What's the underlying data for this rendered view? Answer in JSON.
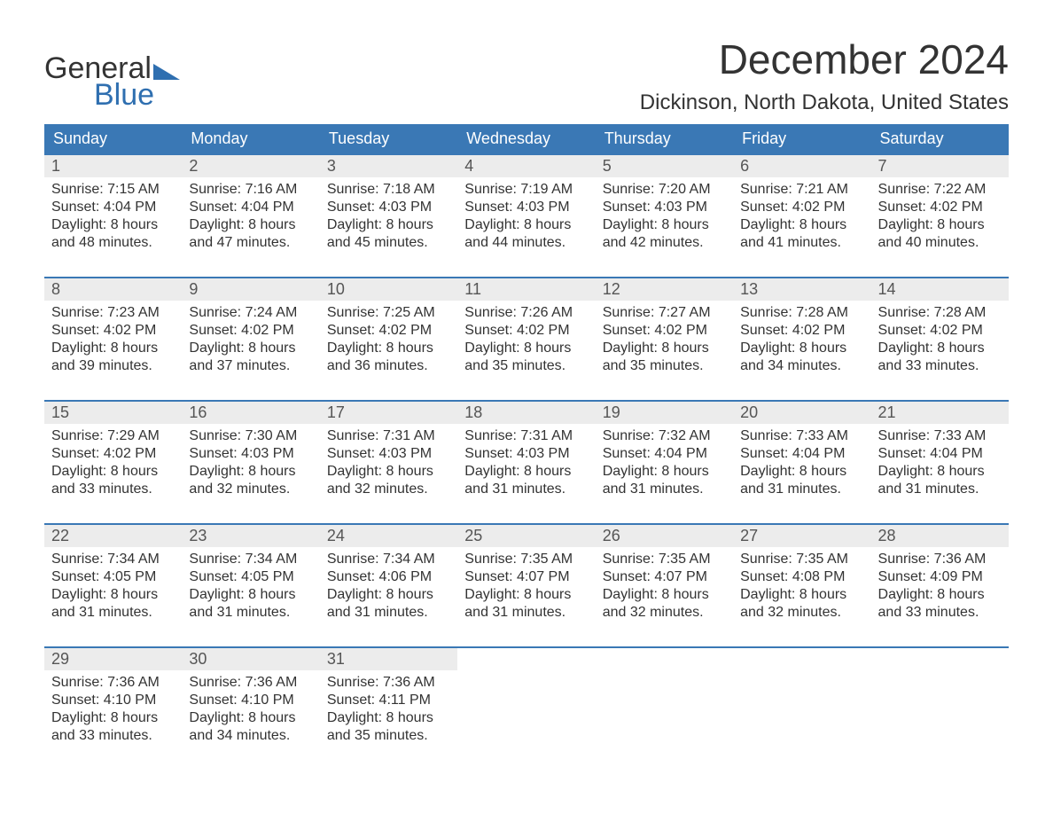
{
  "brand": {
    "line1": "General",
    "line2": "Blue"
  },
  "title": "December 2024",
  "location": "Dickinson, North Dakota, United States",
  "colors": {
    "header_bg": "#3a78b5",
    "header_fg": "#ffffff",
    "daynum_bg": "#ececec",
    "rule": "#3a78b5",
    "brand_accent": "#2f6fb0"
  },
  "weekdays": [
    "Sunday",
    "Monday",
    "Tuesday",
    "Wednesday",
    "Thursday",
    "Friday",
    "Saturday"
  ],
  "weeks": [
    [
      {
        "day": "1",
        "sunrise": "Sunrise: 7:15 AM",
        "sunset": "Sunset: 4:04 PM",
        "d1": "Daylight: 8 hours",
        "d2": "and 48 minutes."
      },
      {
        "day": "2",
        "sunrise": "Sunrise: 7:16 AM",
        "sunset": "Sunset: 4:04 PM",
        "d1": "Daylight: 8 hours",
        "d2": "and 47 minutes."
      },
      {
        "day": "3",
        "sunrise": "Sunrise: 7:18 AM",
        "sunset": "Sunset: 4:03 PM",
        "d1": "Daylight: 8 hours",
        "d2": "and 45 minutes."
      },
      {
        "day": "4",
        "sunrise": "Sunrise: 7:19 AM",
        "sunset": "Sunset: 4:03 PM",
        "d1": "Daylight: 8 hours",
        "d2": "and 44 minutes."
      },
      {
        "day": "5",
        "sunrise": "Sunrise: 7:20 AM",
        "sunset": "Sunset: 4:03 PM",
        "d1": "Daylight: 8 hours",
        "d2": "and 42 minutes."
      },
      {
        "day": "6",
        "sunrise": "Sunrise: 7:21 AM",
        "sunset": "Sunset: 4:02 PM",
        "d1": "Daylight: 8 hours",
        "d2": "and 41 minutes."
      },
      {
        "day": "7",
        "sunrise": "Sunrise: 7:22 AM",
        "sunset": "Sunset: 4:02 PM",
        "d1": "Daylight: 8 hours",
        "d2": "and 40 minutes."
      }
    ],
    [
      {
        "day": "8",
        "sunrise": "Sunrise: 7:23 AM",
        "sunset": "Sunset: 4:02 PM",
        "d1": "Daylight: 8 hours",
        "d2": "and 39 minutes."
      },
      {
        "day": "9",
        "sunrise": "Sunrise: 7:24 AM",
        "sunset": "Sunset: 4:02 PM",
        "d1": "Daylight: 8 hours",
        "d2": "and 37 minutes."
      },
      {
        "day": "10",
        "sunrise": "Sunrise: 7:25 AM",
        "sunset": "Sunset: 4:02 PM",
        "d1": "Daylight: 8 hours",
        "d2": "and 36 minutes."
      },
      {
        "day": "11",
        "sunrise": "Sunrise: 7:26 AM",
        "sunset": "Sunset: 4:02 PM",
        "d1": "Daylight: 8 hours",
        "d2": "and 35 minutes."
      },
      {
        "day": "12",
        "sunrise": "Sunrise: 7:27 AM",
        "sunset": "Sunset: 4:02 PM",
        "d1": "Daylight: 8 hours",
        "d2": "and 35 minutes."
      },
      {
        "day": "13",
        "sunrise": "Sunrise: 7:28 AM",
        "sunset": "Sunset: 4:02 PM",
        "d1": "Daylight: 8 hours",
        "d2": "and 34 minutes."
      },
      {
        "day": "14",
        "sunrise": "Sunrise: 7:28 AM",
        "sunset": "Sunset: 4:02 PM",
        "d1": "Daylight: 8 hours",
        "d2": "and 33 minutes."
      }
    ],
    [
      {
        "day": "15",
        "sunrise": "Sunrise: 7:29 AM",
        "sunset": "Sunset: 4:02 PM",
        "d1": "Daylight: 8 hours",
        "d2": "and 33 minutes."
      },
      {
        "day": "16",
        "sunrise": "Sunrise: 7:30 AM",
        "sunset": "Sunset: 4:03 PM",
        "d1": "Daylight: 8 hours",
        "d2": "and 32 minutes."
      },
      {
        "day": "17",
        "sunrise": "Sunrise: 7:31 AM",
        "sunset": "Sunset: 4:03 PM",
        "d1": "Daylight: 8 hours",
        "d2": "and 32 minutes."
      },
      {
        "day": "18",
        "sunrise": "Sunrise: 7:31 AM",
        "sunset": "Sunset: 4:03 PM",
        "d1": "Daylight: 8 hours",
        "d2": "and 31 minutes."
      },
      {
        "day": "19",
        "sunrise": "Sunrise: 7:32 AM",
        "sunset": "Sunset: 4:04 PM",
        "d1": "Daylight: 8 hours",
        "d2": "and 31 minutes."
      },
      {
        "day": "20",
        "sunrise": "Sunrise: 7:33 AM",
        "sunset": "Sunset: 4:04 PM",
        "d1": "Daylight: 8 hours",
        "d2": "and 31 minutes."
      },
      {
        "day": "21",
        "sunrise": "Sunrise: 7:33 AM",
        "sunset": "Sunset: 4:04 PM",
        "d1": "Daylight: 8 hours",
        "d2": "and 31 minutes."
      }
    ],
    [
      {
        "day": "22",
        "sunrise": "Sunrise: 7:34 AM",
        "sunset": "Sunset: 4:05 PM",
        "d1": "Daylight: 8 hours",
        "d2": "and 31 minutes."
      },
      {
        "day": "23",
        "sunrise": "Sunrise: 7:34 AM",
        "sunset": "Sunset: 4:05 PM",
        "d1": "Daylight: 8 hours",
        "d2": "and 31 minutes."
      },
      {
        "day": "24",
        "sunrise": "Sunrise: 7:34 AM",
        "sunset": "Sunset: 4:06 PM",
        "d1": "Daylight: 8 hours",
        "d2": "and 31 minutes."
      },
      {
        "day": "25",
        "sunrise": "Sunrise: 7:35 AM",
        "sunset": "Sunset: 4:07 PM",
        "d1": "Daylight: 8 hours",
        "d2": "and 31 minutes."
      },
      {
        "day": "26",
        "sunrise": "Sunrise: 7:35 AM",
        "sunset": "Sunset: 4:07 PM",
        "d1": "Daylight: 8 hours",
        "d2": "and 32 minutes."
      },
      {
        "day": "27",
        "sunrise": "Sunrise: 7:35 AM",
        "sunset": "Sunset: 4:08 PM",
        "d1": "Daylight: 8 hours",
        "d2": "and 32 minutes."
      },
      {
        "day": "28",
        "sunrise": "Sunrise: 7:36 AM",
        "sunset": "Sunset: 4:09 PM",
        "d1": "Daylight: 8 hours",
        "d2": "and 33 minutes."
      }
    ],
    [
      {
        "day": "29",
        "sunrise": "Sunrise: 7:36 AM",
        "sunset": "Sunset: 4:10 PM",
        "d1": "Daylight: 8 hours",
        "d2": "and 33 minutes."
      },
      {
        "day": "30",
        "sunrise": "Sunrise: 7:36 AM",
        "sunset": "Sunset: 4:10 PM",
        "d1": "Daylight: 8 hours",
        "d2": "and 34 minutes."
      },
      {
        "day": "31",
        "sunrise": "Sunrise: 7:36 AM",
        "sunset": "Sunset: 4:11 PM",
        "d1": "Daylight: 8 hours",
        "d2": "and 35 minutes."
      },
      null,
      null,
      null,
      null
    ]
  ]
}
